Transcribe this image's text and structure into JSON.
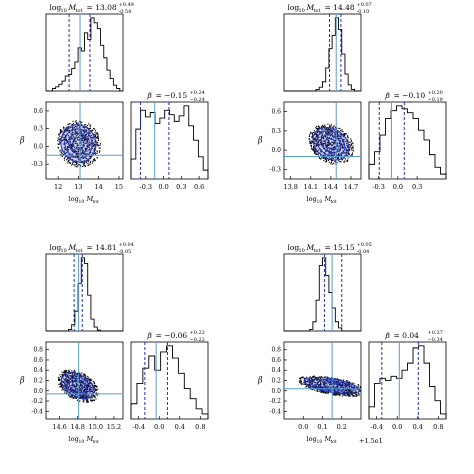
{
  "figure": {
    "background": "#ffffff",
    "hist_color": "#000000",
    "median_color": "#5b9bd5",
    "quantile_color": "#1f2fbf",
    "contour_color": "#1f2fbf"
  },
  "chart_data": [
    {
      "type": "histogram",
      "x_param": "log10 M_tot",
      "beta_param": "beta",
      "mass_title": {
        "label": "log10 M_tot",
        "median": "13.08",
        "plus": "+0.49",
        "minus": "-0.54"
      },
      "beta_title": {
        "label": "β",
        "median": "−0.15",
        "plus": "+0.24",
        "minus": "−0.24"
      },
      "mass_axis": {
        "range": [
          11.4,
          15.2
        ],
        "ticks": [
          "12",
          "13",
          "14",
          "15"
        ],
        "xlabel": "log10 M_tot"
      },
      "beta_axis": {
        "range": [
          -0.55,
          0.75
        ],
        "ticks": [
          "-0.3",
          "0.0",
          "0.3",
          "0.6"
        ],
        "xlabel": "",
        "ylabel": "β",
        "y_ticks": [
          "0.6",
          "0.3",
          "0.0",
          "-0.3"
        ]
      },
      "mass_median": 13.08,
      "mass_q": [
        12.54,
        13.57
      ],
      "beta_median": -0.15,
      "beta_q": [
        -0.39,
        0.09
      ],
      "mass_hist": [
        0,
        0,
        0.03,
        0.05,
        0.08,
        0.12,
        0.18,
        0.2,
        0.27,
        0.35,
        0.52,
        0.48,
        0.7,
        0.62,
        0.88,
        0.82,
        0.75,
        0.55,
        0.4,
        0.25,
        0.15,
        0.07,
        0.03,
        0
      ],
      "beta_hist": [
        0.18,
        0.45,
        0.62,
        0.56,
        0.6,
        0.5,
        0.55,
        0.62,
        0.58,
        0.52,
        0.57,
        0.66,
        0.48,
        0.35,
        0.2,
        0.08
      ],
      "blob": {
        "cx": 13.0,
        "cy": 0.05,
        "rx": 0.85,
        "ry": 0.32,
        "rot": -25
      }
    },
    {
      "type": "histogram",
      "x_param": "log10 M_tot",
      "beta_param": "beta",
      "mass_title": {
        "label": "log10 M_tot",
        "median": "14.48",
        "plus": "+0.07",
        "minus": "-0.10"
      },
      "beta_title": {
        "label": "β",
        "median": "−0.10",
        "plus": "+0.20",
        "minus": "−0.19"
      },
      "mass_axis": {
        "range": [
          13.7,
          14.85
        ],
        "ticks": [
          "13.8",
          "14.1",
          "14.4",
          "14.7"
        ],
        "xlabel": "log10 M_tot"
      },
      "beta_axis": {
        "range": [
          -0.45,
          0.75
        ],
        "ticks": [
          "-0.3",
          "0.0",
          "0.3"
        ],
        "xlabel": "",
        "ylabel": "β",
        "y_ticks": [
          "0.6",
          "0.3",
          "0.0",
          "-0.3"
        ]
      },
      "mass_median": 14.48,
      "mass_q": [
        14.38,
        14.55
      ],
      "beta_median": -0.1,
      "beta_q": [
        -0.29,
        0.1
      ],
      "mass_hist": [
        0,
        0,
        0,
        0,
        0,
        0,
        0,
        0,
        0,
        0,
        0.02,
        0.05,
        0.12,
        0.3,
        0.55,
        0.72,
        0.95,
        0.8,
        0.48,
        0.22,
        0.08,
        0.02,
        0,
        0
      ],
      "beta_hist": [
        0.15,
        0.28,
        0.45,
        0.62,
        0.7,
        0.75,
        0.72,
        0.68,
        0.62,
        0.5,
        0.4,
        0.25,
        0.12,
        0.05
      ],
      "blob": {
        "cx": 14.4,
        "cy": 0.1,
        "rx": 0.22,
        "ry": 0.3,
        "rot": -55
      }
    },
    {
      "type": "histogram",
      "x_param": "log10 M_tot",
      "beta_param": "beta",
      "mass_title": {
        "label": "log10 M_tot",
        "median": "14.81",
        "plus": "+0.04",
        "minus": "-0.05"
      },
      "beta_title": {
        "label": "β",
        "median": "−0.06",
        "plus": "+0.22",
        "minus": "−0.22"
      },
      "mass_axis": {
        "range": [
          14.45,
          15.3
        ],
        "ticks": [
          "14.6",
          "14.8",
          "15.0",
          "15.2"
        ],
        "xlabel": "log10 M_tot"
      },
      "beta_axis": {
        "range": [
          -0.55,
          0.95
        ],
        "ticks": [
          "-0.4",
          "0.0",
          "0.4",
          "0.8"
        ],
        "xlabel": "",
        "ylabel": "β",
        "y_ticks": [
          "0.8",
          "0.6",
          "0.4",
          "0.2",
          "0.0",
          "-0.2",
          "-0.4"
        ]
      },
      "mass_median": 14.81,
      "mass_q": [
        14.76,
        14.85
      ],
      "beta_median": -0.06,
      "beta_q": [
        -0.28,
        0.16
      ],
      "mass_hist": [
        0,
        0,
        0,
        0,
        0,
        0,
        0,
        0.02,
        0.08,
        0.25,
        0.6,
        0.92,
        0.85,
        0.45,
        0.15,
        0.05,
        0.01,
        0,
        0,
        0,
        0,
        0,
        0,
        0
      ],
      "beta_hist": [
        0.15,
        0.35,
        0.5,
        0.62,
        0.48,
        0.66,
        0.72,
        0.6,
        0.45,
        0.3,
        0.2,
        0.1,
        0.05
      ],
      "blob": {
        "cx": 14.8,
        "cy": 0.1,
        "rx": 0.12,
        "ry": 0.35,
        "rot": -60
      }
    },
    {
      "type": "histogram",
      "x_param": "log10 M_tot",
      "beta_param": "beta",
      "mass_title": {
        "label": "log10 M_tot",
        "median": "15.15",
        "plus": "+0.05",
        "minus": "-0.04"
      },
      "beta_title": {
        "label": "β",
        "median": "0.04",
        "plus": "+0.37",
        "minus": "−0.34"
      },
      "mass_axis": {
        "range": [
          -0.1,
          0.3
        ],
        "ticks": [
          "0.0",
          "0.1",
          "0.2"
        ],
        "xlabel": "log10 M_tot",
        "offset": "+1.5e1"
      },
      "beta_axis": {
        "range": [
          -0.55,
          0.95
        ],
        "ticks": [
          "-0.4",
          "0.0",
          "0.4",
          "0.8"
        ],
        "xlabel": "",
        "ylabel": "β",
        "y_ticks": [
          "0.8",
          "0.6",
          "0.4",
          "0.2",
          "0.0",
          "-0.2",
          "-0.4"
        ]
      },
      "mass_median": 0.15,
      "mass_q": [
        0.11,
        0.2
      ],
      "beta_median": 0.04,
      "beta_q": [
        -0.3,
        0.41
      ],
      "mass_hist": [
        0,
        0,
        0,
        0,
        0,
        0,
        0,
        0,
        0.02,
        0.12,
        0.4,
        0.85,
        0.95,
        0.72,
        0.5,
        0.3,
        0.12,
        0.04,
        0,
        0,
        0,
        0,
        0,
        0
      ],
      "beta_hist": [
        0.12,
        0.35,
        0.4,
        0.38,
        0.42,
        0.4,
        0.48,
        0.55,
        0.7,
        0.72,
        0.55,
        0.32,
        0.18,
        0.05
      ],
      "blob": {
        "cx": 0.15,
        "cy": 0.1,
        "rx": 0.035,
        "ry": 0.55,
        "rot": -80
      }
    }
  ]
}
